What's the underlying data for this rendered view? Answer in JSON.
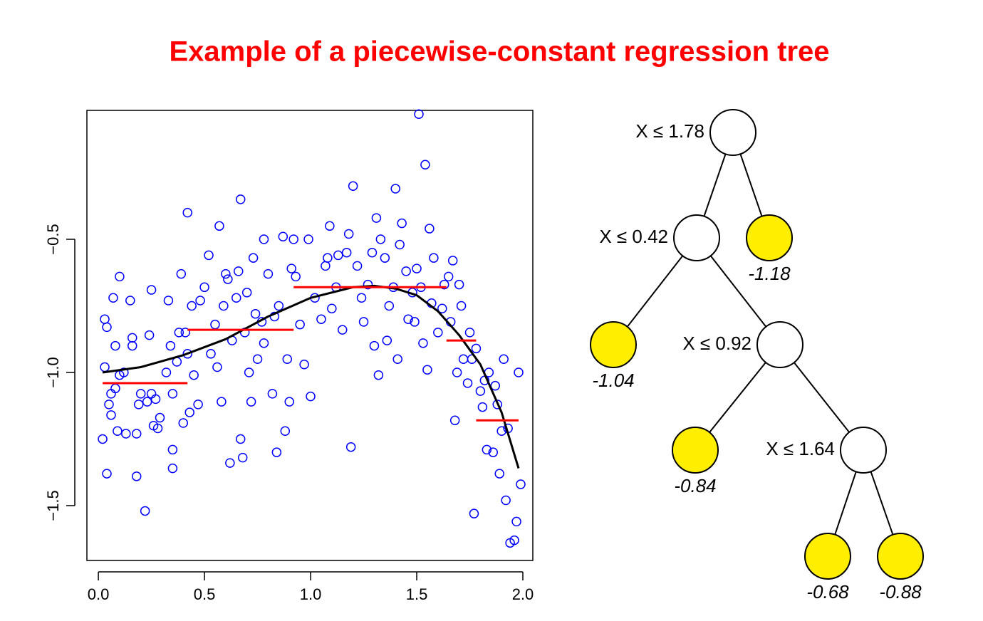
{
  "title": "Example of a piecewise-constant regression tree",
  "chart_data": {
    "type": "scatter",
    "color": "#0000ff",
    "xlim": [
      -0.054,
      2.047
    ],
    "ylim": [
      -1.706,
      -0.016
    ],
    "xticks": [
      {
        "value": 0,
        "label": "0.0"
      },
      0.5,
      {
        "value": 1,
        "label": "1.0"
      },
      1.5,
      {
        "value": 2,
        "label": "2.0"
      }
    ],
    "yticks": [
      {
        "value": -0.5,
        "label": "−0.5"
      },
      {
        "value": -1.0,
        "label": "−1.0"
      },
      {
        "value": -1.5,
        "label": "−1.5"
      }
    ],
    "x": [
      0.02,
      0.03,
      0.03,
      0.04,
      0.04,
      0.05,
      0.06,
      0.06,
      0.07,
      0.08,
      0.08,
      0.09,
      0.1,
      0.1,
      0.12,
      0.13,
      0.15,
      0.16,
      0.16,
      0.18,
      0.18,
      0.19,
      0.2,
      0.22,
      0.23,
      0.24,
      0.25,
      0.25,
      0.26,
      0.27,
      0.28,
      0.29,
      0.32,
      0.33,
      0.34,
      0.35,
      0.35,
      0.35,
      0.37,
      0.38,
      0.39,
      0.4,
      0.41,
      0.42,
      0.42,
      0.43,
      0.44,
      0.45,
      0.47,
      0.48,
      0.5,
      0.52,
      0.53,
      0.55,
      0.56,
      0.57,
      0.58,
      0.59,
      0.6,
      0.61,
      0.62,
      0.63,
      0.65,
      0.66,
      0.67,
      0.67,
      0.68,
      0.69,
      0.7,
      0.71,
      0.72,
      0.73,
      0.74,
      0.75,
      0.77,
      0.78,
      0.78,
      0.8,
      0.82,
      0.83,
      0.84,
      0.85,
      0.87,
      0.88,
      0.89,
      0.9,
      0.91,
      0.92,
      0.93,
      0.95,
      0.97,
      0.99,
      1.0,
      1.02,
      1.05,
      1.07,
      1.08,
      1.09,
      1.1,
      1.12,
      1.13,
      1.15,
      1.17,
      1.18,
      1.19,
      1.2,
      1.22,
      1.24,
      1.25,
      1.27,
      1.29,
      1.3,
      1.31,
      1.32,
      1.33,
      1.35,
      1.36,
      1.37,
      1.39,
      1.4,
      1.41,
      1.42,
      1.43,
      1.45,
      1.46,
      1.48,
      1.49,
      1.5,
      1.51,
      1.52,
      1.53,
      1.54,
      1.55,
      1.56,
      1.57,
      1.58,
      1.6,
      1.62,
      1.63,
      1.65,
      1.66,
      1.67,
      1.68,
      1.69,
      1.7,
      1.71,
      1.72,
      1.74,
      1.75,
      1.76,
      1.77,
      1.78,
      1.8,
      1.81,
      1.82,
      1.83,
      1.84,
      1.86,
      1.87,
      1.88,
      1.89,
      1.9,
      1.91,
      1.92,
      1.93,
      1.94,
      1.96,
      1.97,
      1.98,
      1.99
    ],
    "y": [
      -1.25,
      -0.98,
      -0.8,
      -0.83,
      -1.38,
      -1.12,
      -1.16,
      -1.08,
      -0.72,
      -0.9,
      -1.06,
      -1.22,
      -0.64,
      -1.01,
      -1.0,
      -1.23,
      -0.73,
      -0.87,
      -0.9,
      -1.39,
      -1.23,
      -1.12,
      -1.08,
      -1.52,
      -1.11,
      -0.86,
      -0.69,
      -1.08,
      -1.2,
      -1.1,
      -1.21,
      -1.17,
      -1.0,
      -0.73,
      -0.9,
      -1.08,
      -1.29,
      -1.36,
      -0.96,
      -0.85,
      -0.63,
      -1.19,
      -0.85,
      -0.4,
      -0.93,
      -1.15,
      -0.75,
      -1.01,
      -1.12,
      -0.73,
      -0.68,
      -0.56,
      -0.93,
      -0.82,
      -0.98,
      -0.45,
      -1.11,
      -0.75,
      -0.63,
      -0.65,
      -1.34,
      -0.88,
      -0.72,
      -0.62,
      -1.25,
      -0.35,
      -1.32,
      -0.85,
      -0.7,
      -1.0,
      -1.11,
      -0.57,
      -0.78,
      -0.95,
      -0.81,
      -0.89,
      -0.5,
      -0.63,
      -1.08,
      -0.79,
      -1.3,
      -0.75,
      -0.49,
      -1.22,
      -0.95,
      -1.11,
      -0.61,
      -0.5,
      -0.64,
      -0.82,
      -0.97,
      -0.5,
      -1.09,
      -0.72,
      -0.8,
      -0.6,
      -0.57,
      -0.45,
      -0.76,
      -0.68,
      -0.56,
      -0.84,
      -0.55,
      -0.48,
      -1.28,
      -0.3,
      -0.6,
      -0.72,
      -0.81,
      -0.67,
      -0.55,
      -0.9,
      -0.42,
      -1.01,
      -0.5,
      -0.57,
      -0.88,
      -0.75,
      -0.68,
      -0.31,
      -0.95,
      -0.52,
      -0.44,
      -0.62,
      -0.8,
      -0.7,
      -0.81,
      -0.61,
      -0.03,
      -0.68,
      -0.89,
      -0.22,
      -0.99,
      -0.46,
      -0.74,
      -0.57,
      -0.85,
      -0.76,
      -0.67,
      -0.64,
      -0.81,
      -0.58,
      -1.18,
      -1.0,
      -0.67,
      -0.75,
      -0.95,
      -1.04,
      -0.85,
      -0.95,
      -1.53,
      -0.91,
      -1.07,
      -1.13,
      -1.03,
      -1.29,
      -1.0,
      -1.3,
      -1.05,
      -1.12,
      -1.38,
      -1.22,
      -0.95,
      -1.48,
      -1.21,
      -1.64,
      -1.63,
      -1.56,
      -1.0,
      -1.42
    ],
    "curve": {
      "color": "#000000",
      "x": [
        0.02,
        0.2,
        0.4,
        0.6,
        0.8,
        1.0,
        1.2,
        1.3,
        1.4,
        1.5,
        1.6,
        1.7,
        1.8,
        1.9,
        1.98
      ],
      "y": [
        -1.0,
        -0.98,
        -0.935,
        -0.875,
        -0.79,
        -0.72,
        -0.68,
        -0.675,
        -0.685,
        -0.71,
        -0.77,
        -0.86,
        -0.97,
        -1.15,
        -1.36
      ]
    },
    "steps": {
      "color": "#ff0000",
      "edges": [
        0.02,
        0.42,
        0.92,
        1.64,
        1.78,
        1.98
      ],
      "values": [
        -1.04,
        -0.84,
        -0.68,
        -0.88,
        -1.18
      ]
    }
  },
  "tree": {
    "nodes": [
      {
        "label": "X ≤ 1.78"
      },
      {
        "label": "X ≤ 0.42"
      },
      {
        "label": "-1.18"
      },
      {
        "label": "-1.04"
      },
      {
        "label": "X ≤ 0.92"
      },
      {
        "label": "-0.84"
      },
      {
        "label": "X ≤ 1.64"
      },
      {
        "label": "-0.68"
      },
      {
        "label": "-0.88"
      }
    ]
  }
}
